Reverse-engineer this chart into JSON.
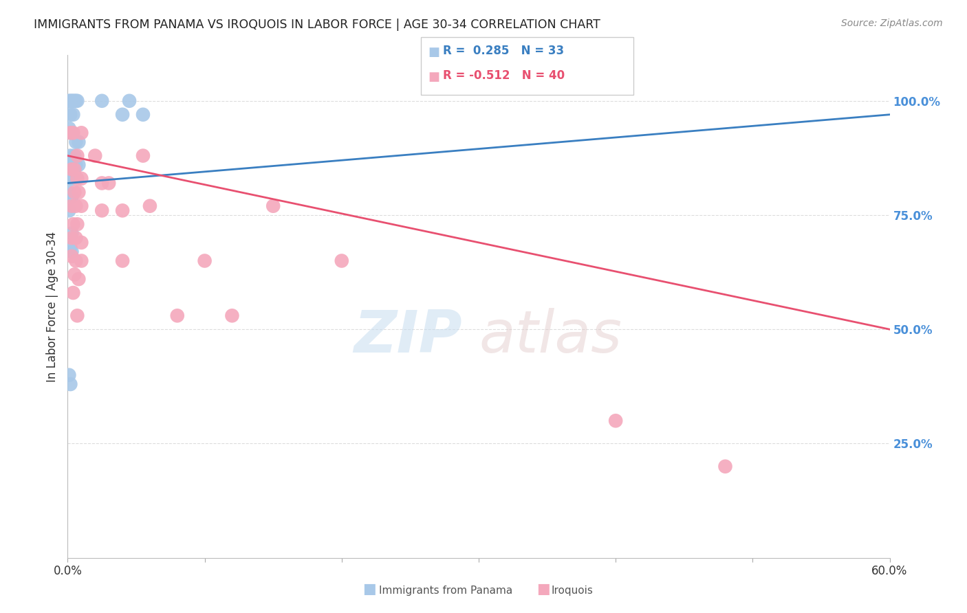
{
  "title": "IMMIGRANTS FROM PANAMA VS IROQUOIS IN LABOR FORCE | AGE 30-34 CORRELATION CHART",
  "source": "Source: ZipAtlas.com",
  "ylabel": "In Labor Force | Age 30-34",
  "x_min": 0.0,
  "x_max": 0.6,
  "y_min": 0.0,
  "y_max": 1.1,
  "panama_color": "#a8c8e8",
  "iroquois_color": "#f4a8bc",
  "panama_line_color": "#3a7fc1",
  "iroquois_line_color": "#e85070",
  "grid_color": "#dddddd",
  "bg_color": "#ffffff",
  "title_color": "#222222",
  "right_tick_color": "#4a90d9",
  "panama_points": [
    [
      0.001,
      1.0
    ],
    [
      0.002,
      1.0
    ],
    [
      0.003,
      1.0
    ],
    [
      0.004,
      1.0
    ],
    [
      0.005,
      1.0
    ],
    [
      0.006,
      1.0
    ],
    [
      0.007,
      1.0
    ],
    [
      0.002,
      0.97
    ],
    [
      0.004,
      0.97
    ],
    [
      0.001,
      0.94
    ],
    [
      0.003,
      0.93
    ],
    [
      0.006,
      0.91
    ],
    [
      0.008,
      0.91
    ],
    [
      0.002,
      0.88
    ],
    [
      0.005,
      0.88
    ],
    [
      0.001,
      0.86
    ],
    [
      0.003,
      0.86
    ],
    [
      0.006,
      0.86
    ],
    [
      0.008,
      0.86
    ],
    [
      0.002,
      0.83
    ],
    [
      0.004,
      0.83
    ],
    [
      0.001,
      0.8
    ],
    [
      0.003,
      0.79
    ],
    [
      0.001,
      0.76
    ],
    [
      0.003,
      0.71
    ],
    [
      0.002,
      0.68
    ],
    [
      0.003,
      0.67
    ],
    [
      0.001,
      0.4
    ],
    [
      0.002,
      0.38
    ],
    [
      0.025,
      1.0
    ],
    [
      0.045,
      1.0
    ],
    [
      0.04,
      0.97
    ],
    [
      0.055,
      0.97
    ]
  ],
  "iroquois_points": [
    [
      0.002,
      0.93
    ],
    [
      0.004,
      0.93
    ],
    [
      0.01,
      0.93
    ],
    [
      0.007,
      0.88
    ],
    [
      0.003,
      0.85
    ],
    [
      0.005,
      0.85
    ],
    [
      0.007,
      0.83
    ],
    [
      0.01,
      0.83
    ],
    [
      0.005,
      0.8
    ],
    [
      0.008,
      0.8
    ],
    [
      0.003,
      0.77
    ],
    [
      0.006,
      0.77
    ],
    [
      0.01,
      0.77
    ],
    [
      0.004,
      0.73
    ],
    [
      0.007,
      0.73
    ],
    [
      0.003,
      0.7
    ],
    [
      0.006,
      0.7
    ],
    [
      0.01,
      0.69
    ],
    [
      0.003,
      0.66
    ],
    [
      0.006,
      0.65
    ],
    [
      0.01,
      0.65
    ],
    [
      0.005,
      0.62
    ],
    [
      0.008,
      0.61
    ],
    [
      0.004,
      0.58
    ],
    [
      0.007,
      0.53
    ],
    [
      0.02,
      0.88
    ],
    [
      0.025,
      0.82
    ],
    [
      0.03,
      0.82
    ],
    [
      0.025,
      0.76
    ],
    [
      0.04,
      0.76
    ],
    [
      0.04,
      0.65
    ],
    [
      0.055,
      0.88
    ],
    [
      0.06,
      0.77
    ],
    [
      0.08,
      0.53
    ],
    [
      0.1,
      0.65
    ],
    [
      0.12,
      0.53
    ],
    [
      0.15,
      0.77
    ],
    [
      0.2,
      0.65
    ],
    [
      0.4,
      0.3
    ],
    [
      0.48,
      0.2
    ]
  ]
}
